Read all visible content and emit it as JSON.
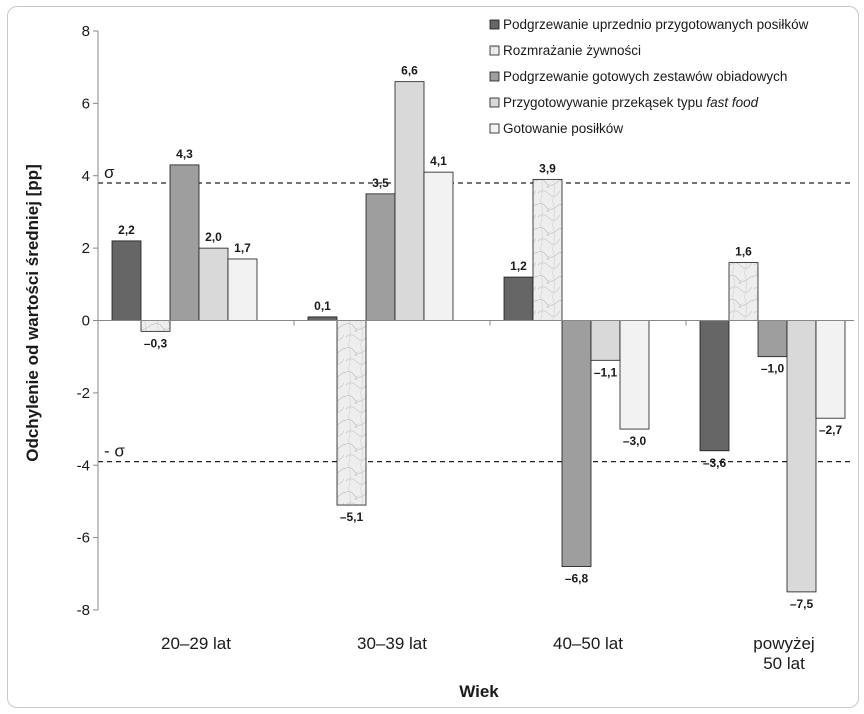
{
  "chart_data": {
    "type": "bar",
    "categories": [
      [
        "20–29 lat"
      ],
      [
        "30–39 lat"
      ],
      [
        "40–50 lat"
      ],
      [
        "powyżej",
        "50 lat"
      ]
    ],
    "series": [
      {
        "name": "Podgrzewanie uprzednio przygotowanych posiłków",
        "values": [
          2.2,
          0.1,
          1.2,
          -3.6
        ],
        "labels": [
          "2,2",
          "0,1",
          "1,2",
          "–3,6"
        ],
        "color": "#666666",
        "pattern": "solid"
      },
      {
        "name": "Rozmrażanie żywności",
        "values": [
          -0.3,
          -5.1,
          3.9,
          1.6
        ],
        "labels": [
          "–0,3",
          "–5,1",
          "3,9",
          "1,6"
        ],
        "color": "#e6e6e6",
        "pattern": "marble"
      },
      {
        "name": "Podgrzewanie gotowych zestawów obiadowych",
        "values": [
          4.3,
          3.5,
          -6.8,
          -1.0
        ],
        "labels": [
          "4,3",
          "3,5",
          "–6,8",
          "–1,0"
        ],
        "color": "#9e9e9e",
        "pattern": "solid"
      },
      {
        "name": "Przygotowywanie przekąsek typu ",
        "name_italic": "fast food",
        "values": [
          2.0,
          6.6,
          -1.1,
          -7.5
        ],
        "labels": [
          "2,0",
          "6,6",
          "–1,1",
          "–7,5"
        ],
        "color": "#d9d9d9",
        "pattern": "solid"
      },
      {
        "name": "Gotowanie posiłków",
        "values": [
          1.7,
          4.1,
          -3.0,
          -2.7
        ],
        "labels": [
          "1,7",
          "4,1",
          "–3,0",
          "–2,7"
        ],
        "color": "#f2f2f2",
        "pattern": "solid"
      }
    ],
    "ylim": [
      -8,
      8
    ],
    "yticks": [
      -8,
      -6,
      -4,
      -2,
      0,
      2,
      4,
      6,
      8
    ],
    "xlabel": "Wiek",
    "ylabel": "Odchylenie od wartości średniej [pp]",
    "sigma_lines": [
      {
        "label": "σ",
        "value": 3.8
      },
      {
        "label": "- σ",
        "value": -3.9
      }
    ],
    "legend_position": "top-right",
    "grid": false
  }
}
